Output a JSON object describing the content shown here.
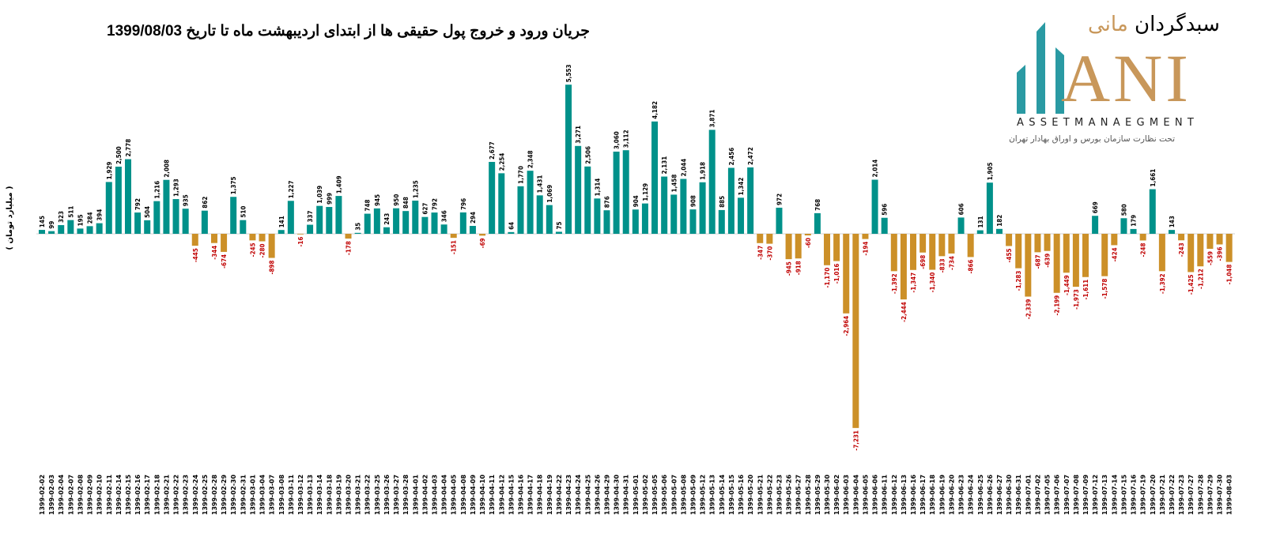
{
  "logo": {
    "name_fa_1": "سبدگردان",
    "name_fa_2": "مانی",
    "mark": "ANI",
    "tagline_en": "ASSETMANAEGMENT",
    "tagline_fa": "تحت نظارت سازمان بورس و اوراق بهادار تهران"
  },
  "colors": {
    "positive": "#00918A",
    "negative": "#CC9028",
    "negative_label": "#C00000",
    "positive_label": "#000000"
  },
  "chart_data": {
    "type": "bar",
    "title": "جریان ورود و خروج پول حقیقی ها از ابتدای اردیبهشت ماه تا تاریخ 1399/08/03",
    "ylabel": "( میلیارد تومان )",
    "xlabel": "",
    "ylim": [
      -7500,
      6000
    ],
    "grid": false,
    "legend": "none",
    "categories": [
      "1399-02-02",
      "1399-02-03",
      "1399-02-04",
      "1399-02-07",
      "1399-02-08",
      "1399-02-09",
      "1399-02-10",
      "1399-02-11",
      "1399-02-14",
      "1399-02-15",
      "1399-02-16",
      "1399-02-17",
      "1399-02-18",
      "1399-02-21",
      "1399-02-22",
      "1399-02-23",
      "1399-02-24",
      "1399-02-25",
      "1399-02-28",
      "1399-02-29",
      "1399-02-30",
      "1399-02-31",
      "1399-03-01",
      "1399-03-04",
      "1399-03-07",
      "1399-03-08",
      "1399-03-11",
      "1399-03-12",
      "1399-03-13",
      "1399-03-14",
      "1399-03-18",
      "1399-03-19",
      "1399-03-20",
      "1399-03-21",
      "1399-03-22",
      "1399-03-25",
      "1399-03-26",
      "1399-03-27",
      "1399-03-28",
      "1399-04-01",
      "1399-04-02",
      "1399-04-03",
      "1399-04-04",
      "1399-04-05",
      "1399-04-08",
      "1399-04-09",
      "1399-04-10",
      "1399-04-11",
      "1399-04-12",
      "1399-04-15",
      "1399-04-16",
      "1399-04-17",
      "1399-04-18",
      "1399-04-19",
      "1399-04-22",
      "1399-04-23",
      "1399-04-24",
      "1399-04-25",
      "1399-04-26",
      "1399-04-29",
      "1399-04-30",
      "1399-04-31",
      "1399-05-01",
      "1399-05-02",
      "1399-05-05",
      "1399-05-06",
      "1399-05-07",
      "1399-05-08",
      "1399-05-09",
      "1399-05-12",
      "1399-05-13",
      "1399-05-14",
      "1399-05-15",
      "1399-05-16",
      "1399-05-20",
      "1399-05-21",
      "1399-05-22",
      "1399-05-23",
      "1399-05-26",
      "1399-05-27",
      "1399-05-28",
      "1399-05-29",
      "1399-05-30",
      "1399-06-02",
      "1399-06-03",
      "1399-06-04",
      "1399-06-05",
      "1399-06-06",
      "1399-06-11",
      "1399-06-12",
      "1399-06-13",
      "1399-06-16",
      "1399-06-17",
      "1399-06-18",
      "1399-06-19",
      "1399-06-20",
      "1399-06-23",
      "1399-06-24",
      "1399-06-25",
      "1399-06-26",
      "1399-06-27",
      "1399-06-30",
      "1399-06-31",
      "1399-07-01",
      "1399-07-02",
      "1399-07-05",
      "1399-07-06",
      "1399-07-07",
      "1399-07-08",
      "1399-07-09",
      "1399-07-12",
      "1399-07-13",
      "1399-07-14",
      "1399-07-15",
      "1399-07-16",
      "1399-07-19",
      "1399-07-20",
      "1399-07-21",
      "1399-07-22",
      "1399-07-23",
      "1399-07-27",
      "1399-07-28",
      "1399-07-29",
      "1399-07-30",
      "1399-08-03"
    ],
    "values": [
      145,
      99,
      323,
      511,
      195,
      284,
      394,
      1929,
      2500,
      2778,
      792,
      504,
      1216,
      2008,
      1293,
      935,
      -445,
      862,
      -344,
      -674,
      1375,
      510,
      -245,
      -280,
      -898,
      141,
      1227,
      -16,
      337,
      1039,
      999,
      1409,
      -178,
      35,
      748,
      945,
      243,
      950,
      848,
      1235,
      627,
      792,
      346,
      -151,
      796,
      294,
      -69,
      2677,
      2254,
      64,
      1770,
      2348,
      1431,
      1069,
      75,
      5553,
      3271,
      2506,
      1314,
      876,
      3060,
      3112,
      904,
      1129,
      4182,
      2131,
      1458,
      2044,
      908,
      1918,
      3871,
      885,
      2456,
      1342,
      2472,
      -347,
      -370,
      972,
      -945,
      -918,
      -60,
      768,
      -1170,
      -1016,
      -2964,
      -7231,
      -194,
      2014,
      596,
      -1392,
      -2444,
      -1347,
      -698,
      -1340,
      -833,
      -734,
      606,
      -866,
      131,
      1905,
      182,
      -455,
      -1283,
      -2339,
      -687,
      -639,
      -2199,
      -1449,
      -1973,
      -1611,
      669,
      -1578,
      -424,
      580,
      179,
      -248,
      1661,
      -1392,
      143,
      -243,
      -1425,
      -1212,
      -559,
      -396,
      -1048
    ]
  }
}
